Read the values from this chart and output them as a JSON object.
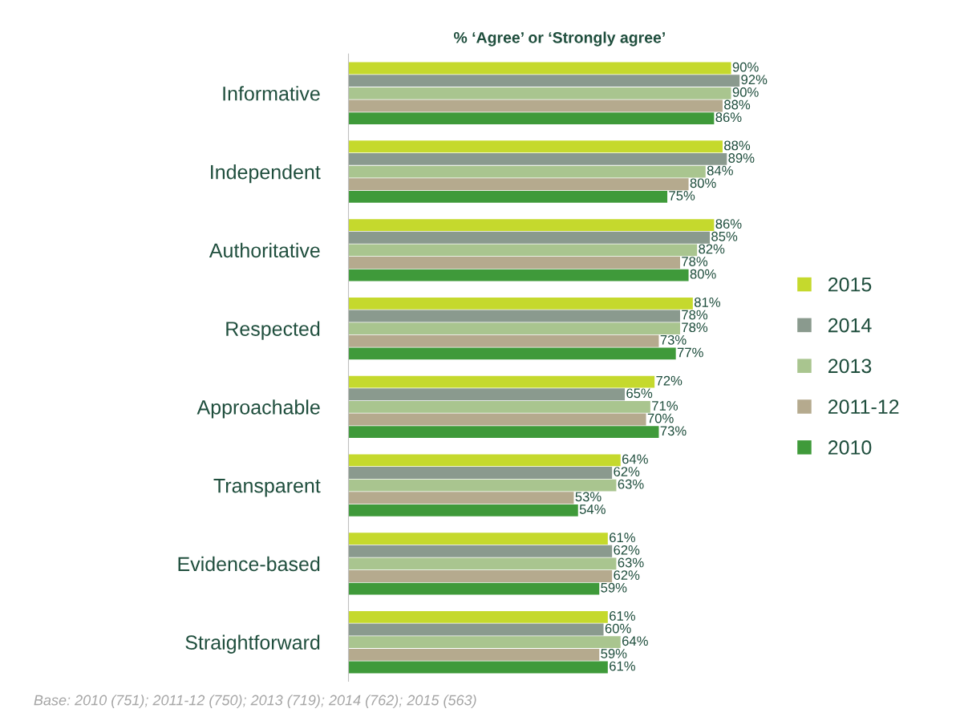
{
  "chart_data": {
    "type": "bar",
    "orientation": "horizontal",
    "title": "% ‘Agree’ or ‘Strongly agree’",
    "categories": [
      "Informative",
      "Independent",
      "Authoritative",
      "Respected",
      "Approachable",
      "Transparent",
      "Evidence-based",
      "Straightforward"
    ],
    "series": [
      {
        "name": "2015",
        "color": "#c5d92d",
        "values": [
          90,
          88,
          86,
          81,
          72,
          64,
          61,
          61
        ],
        "value_labels": [
          "90%",
          "88%",
          "86%",
          "81%",
          "72%",
          "64%",
          "61%",
          "61%"
        ]
      },
      {
        "name": "2014",
        "color": "#8a9a8e",
        "values": [
          92,
          89,
          85,
          78,
          65,
          62,
          62,
          60
        ],
        "value_labels": [
          "92%",
          "89%",
          "85%",
          "78%",
          "65%",
          "62%",
          "62%",
          "60%"
        ]
      },
      {
        "name": "2013",
        "color": "#a9c58f",
        "values": [
          90,
          84,
          82,
          78,
          71,
          63,
          63,
          64
        ],
        "value_labels": [
          "90%",
          "84%",
          "82%",
          "78%",
          "71%",
          "63%",
          "63%",
          "64%"
        ]
      },
      {
        "name": "2011-12",
        "color": "#b5aa8e",
        "values": [
          88,
          80,
          78,
          73,
          70,
          53,
          62,
          59
        ],
        "value_labels": [
          "88%",
          "80%",
          "78%",
          "73%",
          "70%",
          "53%",
          "62%",
          "59%"
        ]
      },
      {
        "name": "2010",
        "color": "#3f9a3a",
        "values": [
          86,
          75,
          80,
          77,
          73,
          54,
          59,
          61
        ],
        "value_labels": [
          "86%",
          "75%",
          "80%",
          "77%",
          "73%",
          "54%",
          "59%",
          "61%"
        ]
      }
    ],
    "legend": "right",
    "annotations": [
      "Base: 2010 (751); 2011-12 (750); 2013 (719); 2014 (762); 2015 (563)"
    ]
  }
}
